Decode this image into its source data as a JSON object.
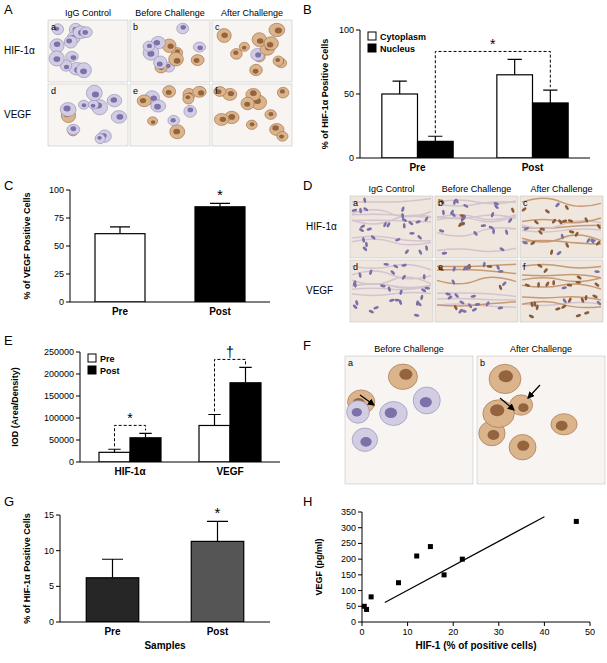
{
  "panel_labels": [
    "A",
    "B",
    "C",
    "D",
    "E",
    "F",
    "G",
    "H"
  ],
  "micrographs": {
    "A": {
      "columns": [
        "IgG Control",
        "Before Challenge",
        "After Challenge"
      ],
      "rows": [
        "HIF-1α",
        "VEGF"
      ],
      "sublabels": [
        "a",
        "b",
        "c",
        "d",
        "e",
        "f"
      ]
    },
    "D": {
      "columns": [
        "IgG Control",
        "Before Challenge",
        "After Challenge"
      ],
      "rows": [
        "HIF-1α",
        "VEGF"
      ],
      "sublabels": [
        "a",
        "b",
        "c",
        "d",
        "e",
        "f"
      ]
    },
    "F": {
      "columns": [
        "Before Challenge",
        "After Challenge"
      ],
      "sublabels": [
        "a",
        "b"
      ]
    }
  },
  "chart_data": [
    {
      "type": "bar",
      "categories": [
        "Pre",
        "Post"
      ],
      "series": [
        {
          "name": "Cytoplasm",
          "color": "#ffffff",
          "values": [
            50,
            65
          ],
          "errors": [
            10,
            12
          ]
        },
        {
          "name": "Nucleus",
          "color": "#000000",
          "values": [
            13,
            43
          ],
          "errors": [
            4,
            10
          ]
        }
      ],
      "ylabel": "% of HIF-1α Positive Cells",
      "ylim": [
        0,
        100
      ],
      "yticks": [
        0,
        50,
        100
      ],
      "legend": "top-left",
      "annotations": [
        {
          "text": "*",
          "series": 1
        }
      ]
    },
    {
      "type": "bar",
      "categories": [
        "Pre",
        "Post"
      ],
      "values": [
        61,
        85
      ],
      "errors": [
        6,
        3
      ],
      "colors": [
        "#ffffff",
        "#000000"
      ],
      "ylabel": "% of VEGF Positive Cells",
      "ylim": [
        0,
        100
      ],
      "yticks": [
        0,
        25,
        50,
        75,
        100
      ],
      "annotations": [
        {
          "text": "*",
          "category": 1
        }
      ]
    },
    {
      "type": "bar",
      "categories": [
        "HIF-1α",
        "VEGF"
      ],
      "series": [
        {
          "name": "Pre",
          "color": "#ffffff",
          "values": [
            22000,
            83000
          ],
          "errors": [
            7000,
            25000
          ]
        },
        {
          "name": "Post",
          "color": "#000000",
          "values": [
            55000,
            180000
          ],
          "errors": [
            10000,
            35000
          ]
        }
      ],
      "ylabel": "IOD (Area/Density)",
      "ylim": [
        0,
        250000
      ],
      "yticks": [
        0,
        50000,
        100000,
        150000,
        200000,
        250000
      ],
      "legend": "top-left",
      "annotations": [
        {
          "text": "*",
          "category": 0
        },
        {
          "text": "†",
          "category": 1
        }
      ]
    },
    {
      "type": "bar",
      "categories": [
        "Pre",
        "Post"
      ],
      "values": [
        6.2,
        11.3
      ],
      "errors": [
        2.6,
        2.8
      ],
      "colors": [
        "#262626",
        "#555555"
      ],
      "ylabel": "% of HIF-1α Positive Cells",
      "xlabel": "Samples",
      "ylim": [
        0,
        15
      ],
      "yticks": [
        0,
        5,
        10,
        15
      ],
      "annotations": [
        {
          "text": "*",
          "category": 1
        }
      ]
    },
    {
      "type": "scatter",
      "x": [
        0.5,
        1,
        2,
        8,
        12,
        15,
        18,
        22,
        47
      ],
      "values": [
        50,
        40,
        80,
        125,
        210,
        240,
        150,
        200,
        320
      ],
      "color": "#000000",
      "marker": "square",
      "xlabel": "HIF-1 (% of positive cells)",
      "ylabel": "VEGF (pg/ml)",
      "xlim": [
        0,
        50
      ],
      "ylim": [
        0,
        350
      ],
      "xticks": [
        0,
        10,
        20,
        30,
        40,
        50
      ],
      "yticks": [
        0,
        50,
        100,
        150,
        200,
        250,
        300,
        350
      ],
      "trend_line": {
        "x": [
          5,
          40
        ],
        "y": [
          62,
          335
        ]
      }
    }
  ]
}
